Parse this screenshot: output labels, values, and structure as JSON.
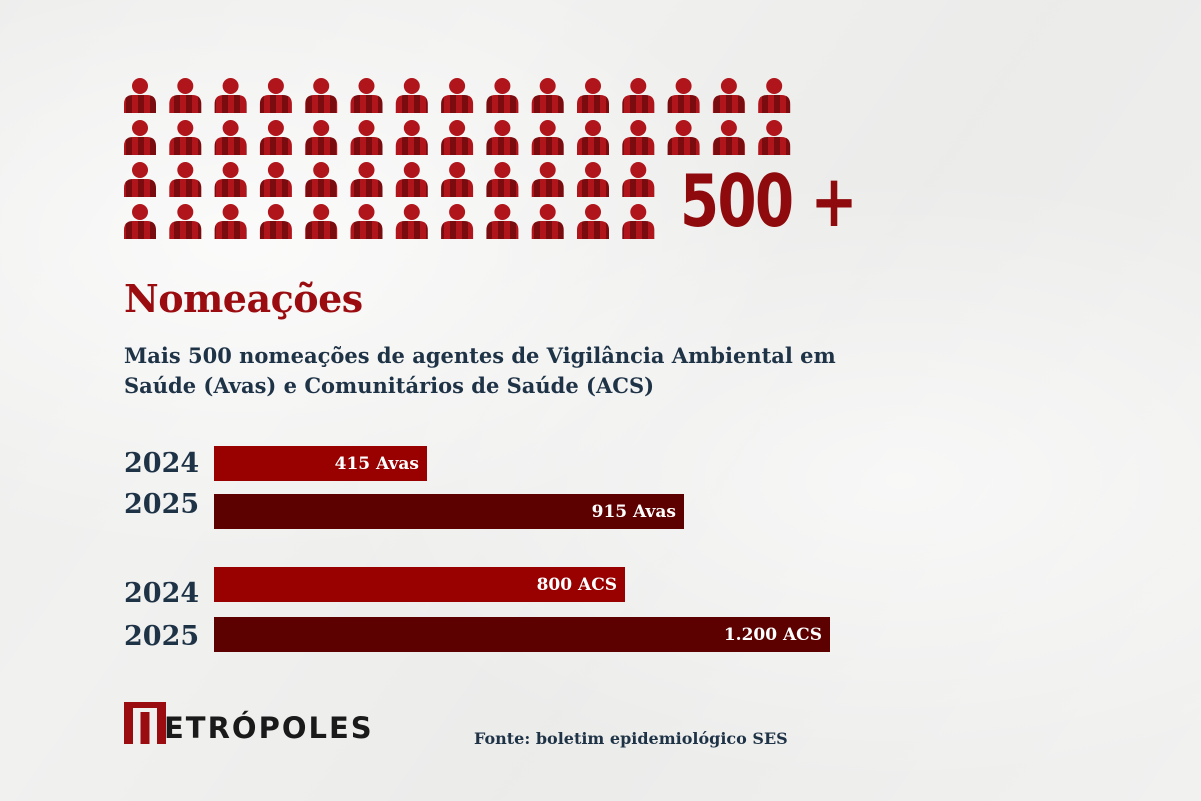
{
  "header": {
    "big_number": "500 +"
  },
  "title": "Nomeações",
  "subtitle": "Mais 500 nomeações de agentes de Vigilância Ambiental em Saúde (Avas) e Comunitários de Saúde (ACS)",
  "colors": {
    "accent": "#9b0c10",
    "bar_2024": "#990000",
    "bar_2025": "#5c0000",
    "text": "#1f3347",
    "icon_light": "#b0151b",
    "icon_dark": "#7a0b0f"
  },
  "pictogram": {
    "icon": "person-icon",
    "rows": [
      15,
      15,
      12,
      12
    ]
  },
  "chart_data": {
    "type": "bar",
    "orientation": "horizontal",
    "categories": [
      "2024",
      "2025",
      "2024",
      "2025"
    ],
    "values": [
      415,
      915,
      800,
      1200
    ],
    "groups": [
      "Avas",
      "Avas",
      "ACS",
      "ACS"
    ],
    "data_labels": [
      "415 Avas",
      "915 Avas",
      "800 ACS",
      "1.200 ACS"
    ],
    "xlim": [
      0,
      1200
    ]
  },
  "footer": {
    "logo_text": "ETRÓPOLES",
    "logo_name": "Metrópoles",
    "source": "Fonte: boletim epidemiológico SES"
  }
}
